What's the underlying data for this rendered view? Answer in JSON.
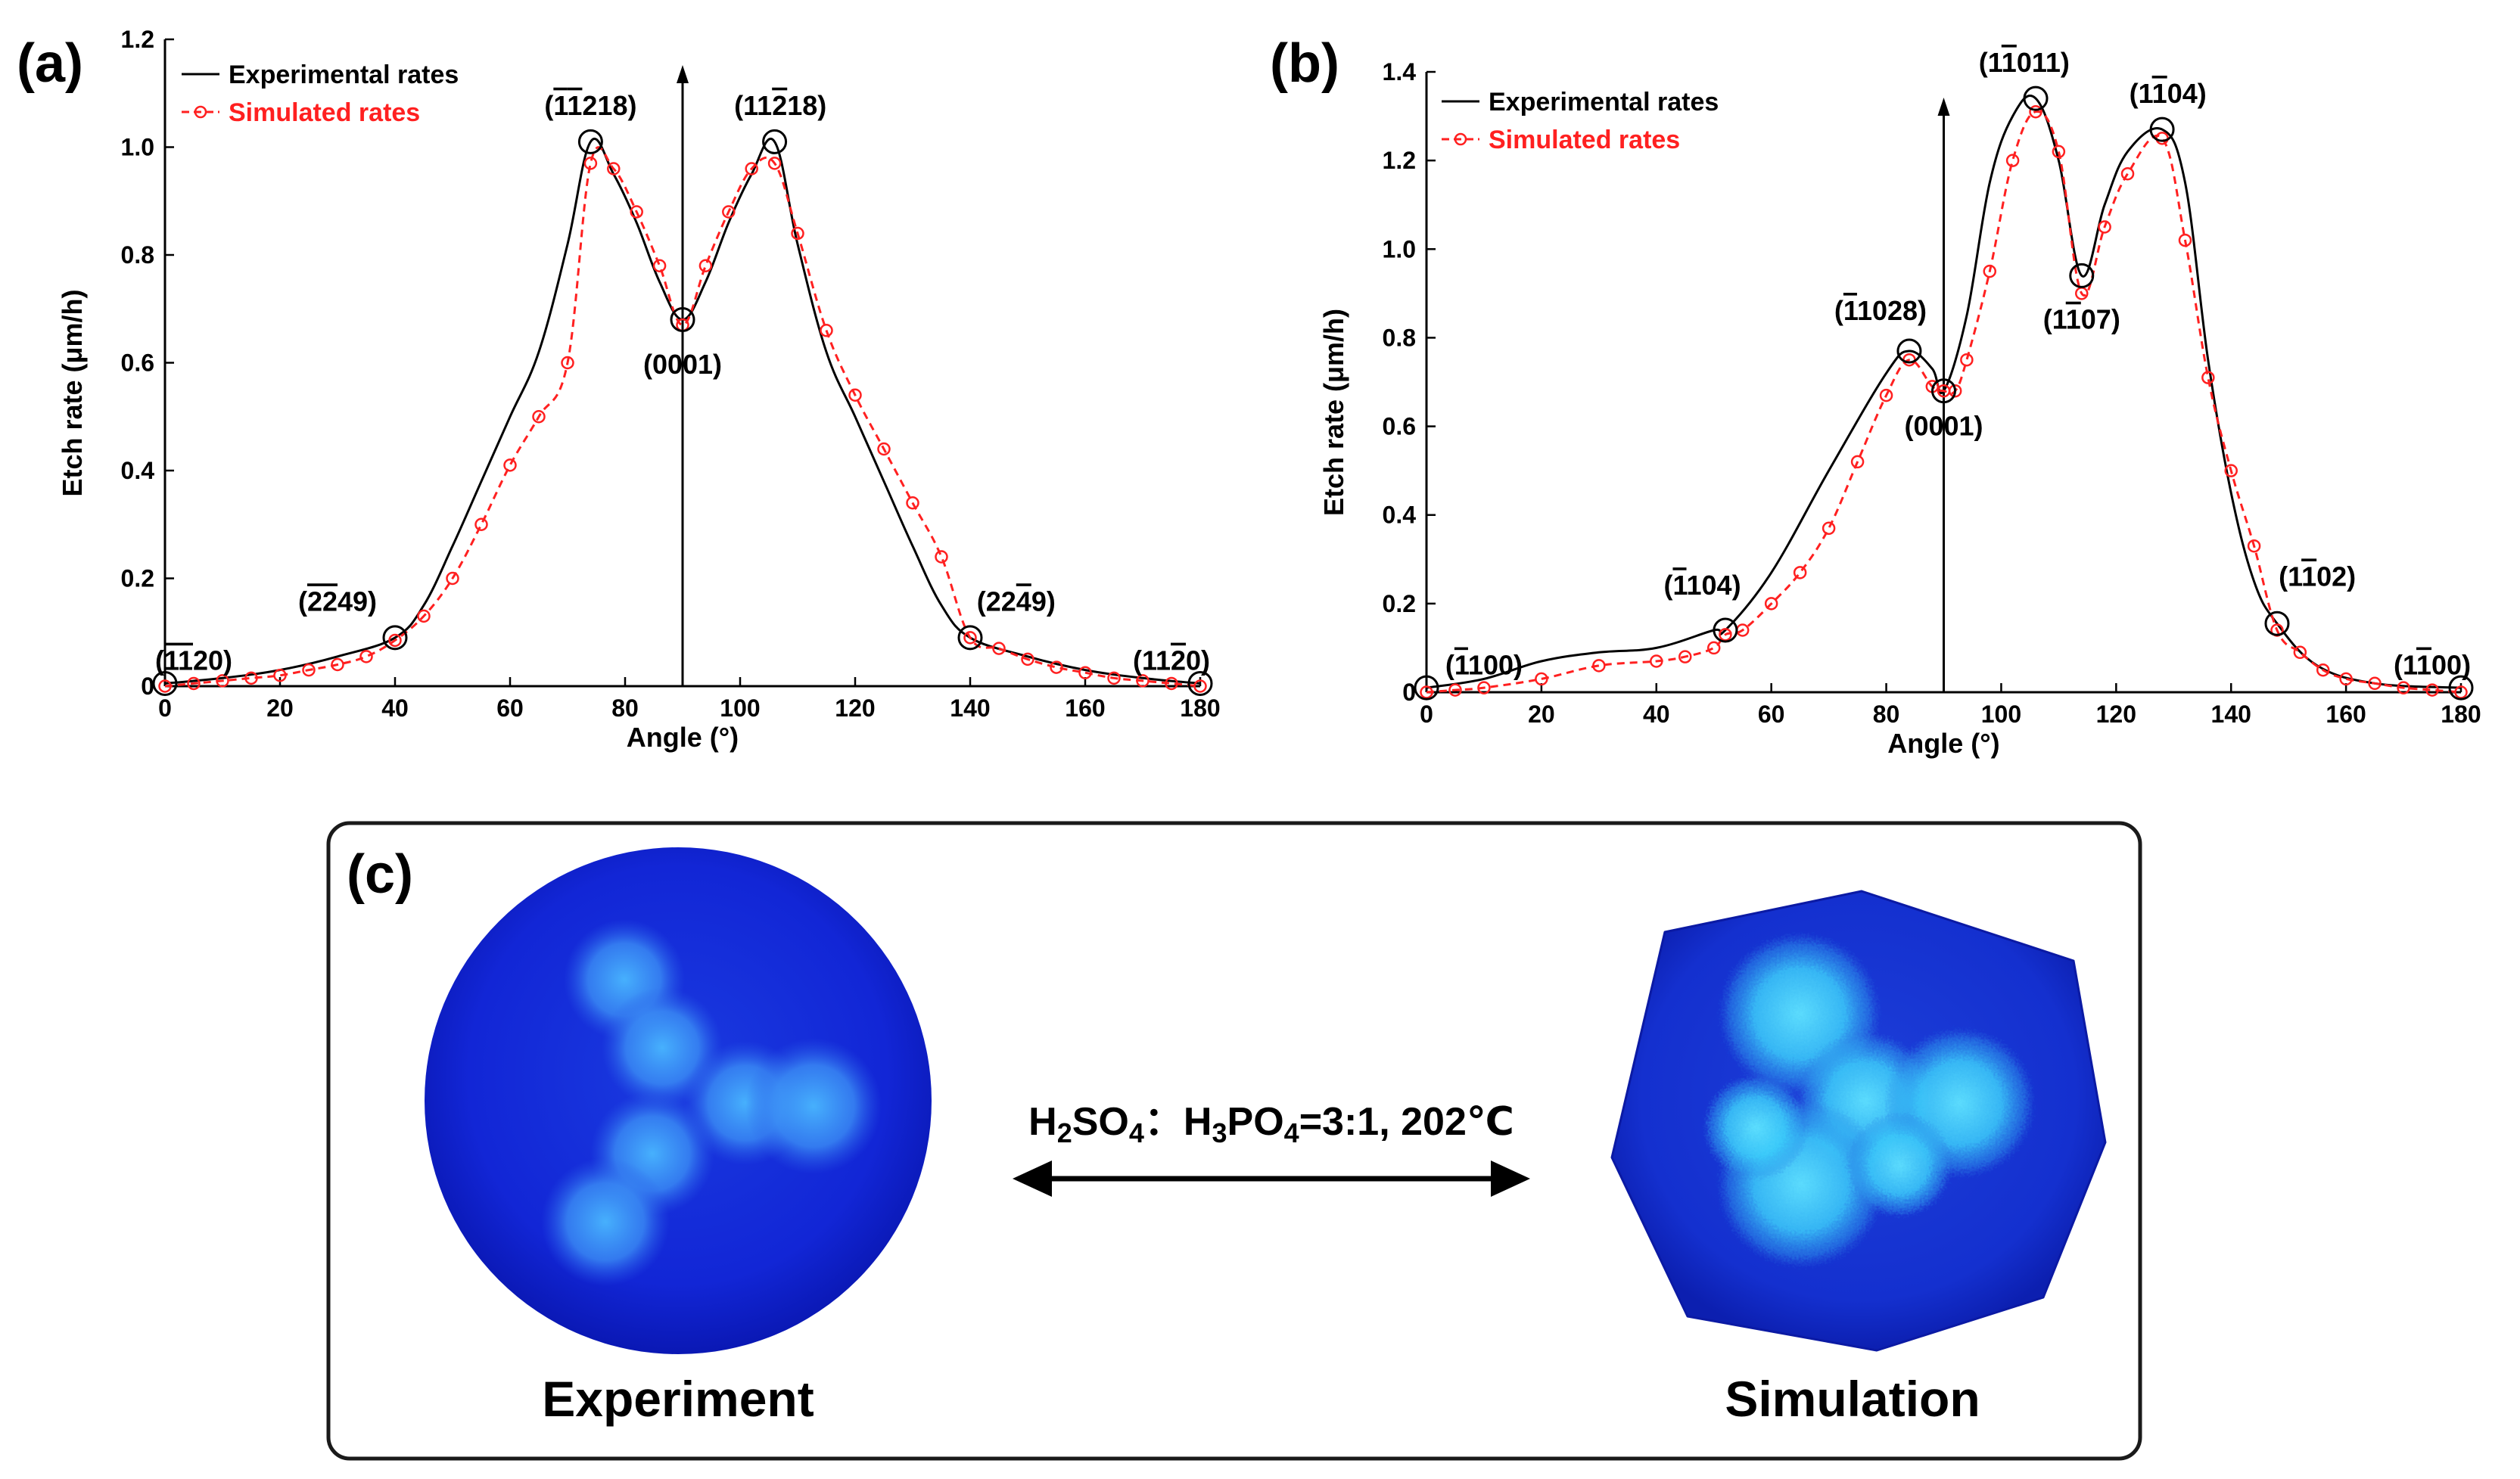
{
  "colors": {
    "experimental": "#000000",
    "simulated": "#ff2020",
    "panel_border": "#1a1a1a",
    "sphere_dark": "#0f1fcf",
    "sphere_light": "#3fa9ff",
    "sim_spot": "#35d4ff"
  },
  "chart_data": [
    {
      "panel": "(a)",
      "type": "line",
      "xlabel": "Angle (°)",
      "ylabel": "Etch rate (μm/h)",
      "xlim": [
        0,
        180
      ],
      "ylim": [
        0,
        1.2
      ],
      "xticks": [
        "0",
        "20",
        "40",
        "60",
        "80",
        "100",
        "120",
        "140",
        "160",
        "180"
      ],
      "yticks": [
        "0",
        "0.2",
        "0.4",
        "0.6",
        "0.8",
        "1.0",
        "1.2"
      ],
      "xtick_values": [
        0,
        20,
        40,
        60,
        80,
        100,
        120,
        140,
        160,
        180
      ],
      "ytick_values": [
        0,
        0.2,
        0.4,
        0.6,
        0.8,
        1.0,
        1.2
      ],
      "legend": [
        "Experimental rates",
        "Simulated rates"
      ],
      "legend_position": "top-left",
      "vertical_arrow_x": 90,
      "series": [
        {
          "name": "Experimental rates",
          "style": "solid",
          "x": [
            0,
            10,
            20,
            30,
            40,
            45,
            50,
            55,
            60,
            65,
            70,
            74,
            78,
            82,
            86,
            90,
            94,
            98,
            102,
            106,
            110,
            115,
            120,
            125,
            130,
            135,
            140,
            150,
            160,
            170,
            180
          ],
          "y": [
            0.005,
            0.015,
            0.03,
            0.055,
            0.09,
            0.15,
            0.26,
            0.38,
            0.5,
            0.62,
            0.82,
            1.01,
            0.95,
            0.86,
            0.75,
            0.68,
            0.75,
            0.86,
            0.95,
            1.01,
            0.82,
            0.62,
            0.5,
            0.38,
            0.26,
            0.15,
            0.09,
            0.055,
            0.03,
            0.015,
            0.005
          ]
        },
        {
          "name": "Simulated rates",
          "style": "dashed-circle",
          "x": [
            0,
            5,
            10,
            15,
            20,
            25,
            30,
            35,
            40,
            45,
            50,
            55,
            60,
            65,
            70,
            74,
            78,
            82,
            86,
            90,
            94,
            98,
            102,
            106,
            110,
            115,
            120,
            125,
            130,
            135,
            140,
            145,
            150,
            155,
            160,
            165,
            170,
            175,
            180
          ],
          "y": [
            0.0,
            0.005,
            0.01,
            0.015,
            0.02,
            0.03,
            0.04,
            0.055,
            0.085,
            0.13,
            0.2,
            0.3,
            0.41,
            0.5,
            0.6,
            0.97,
            0.96,
            0.88,
            0.78,
            0.67,
            0.78,
            0.88,
            0.96,
            0.97,
            0.84,
            0.66,
            0.54,
            0.44,
            0.34,
            0.24,
            0.09,
            0.07,
            0.05,
            0.035,
            0.025,
            0.015,
            0.01,
            0.005,
            0.0
          ]
        }
      ],
      "markers": [
        {
          "x": 0,
          "y": 0.005,
          "label_parts": [
            "(",
            "1",
            "1",
            "20)"
          ],
          "bars": [
            1,
            2
          ],
          "label_x": 5,
          "label_y": 0.03,
          "anchor": "middle"
        },
        {
          "x": 40,
          "y": 0.09,
          "label_parts": [
            "(",
            "2",
            "2",
            "49)"
          ],
          "bars": [
            1,
            2
          ],
          "label_x": 30,
          "label_y": 0.14,
          "anchor": "middle"
        },
        {
          "x": 74,
          "y": 1.01,
          "label_parts": [
            "(",
            "1",
            "1",
            "218)"
          ],
          "bars": [
            1,
            2
          ],
          "label_x": 74,
          "label_y": 1.06,
          "anchor": "middle"
        },
        {
          "x": 90,
          "y": 0.68,
          "label_parts": [
            "(0001)"
          ],
          "bars": [],
          "label_x": 90,
          "label_y": 0.58,
          "anchor": "middle"
        },
        {
          "x": 106,
          "y": 1.01,
          "label_parts": [
            "(11",
            "2",
            "18)"
          ],
          "bars": [
            1
          ],
          "label_x": 107,
          "label_y": 1.06,
          "anchor": "middle"
        },
        {
          "x": 140,
          "y": 0.09,
          "label_parts": [
            "(22",
            "4",
            "9)"
          ],
          "bars": [
            1
          ],
          "label_x": 148,
          "label_y": 0.14,
          "anchor": "middle"
        },
        {
          "x": 180,
          "y": 0.005,
          "label_parts": [
            "(11",
            "2",
            "0)"
          ],
          "bars": [
            1
          ],
          "label_x": 175,
          "label_y": 0.03,
          "anchor": "middle"
        }
      ]
    },
    {
      "panel": "(b)",
      "type": "line",
      "xlabel": "Angle (°)",
      "ylabel": "Etch rate (μm/h)",
      "xlim": [
        0,
        180
      ],
      "ylim": [
        0,
        1.4
      ],
      "xticks": [
        "0",
        "20",
        "40",
        "60",
        "80",
        "100",
        "120",
        "140",
        "160",
        "180"
      ],
      "yticks": [
        "0",
        "0.2",
        "0.4",
        "0.6",
        "0.8",
        "1.0",
        "1.2",
        "1.4"
      ],
      "xtick_values": [
        0,
        20,
        40,
        60,
        80,
        100,
        120,
        140,
        160,
        180
      ],
      "ytick_values": [
        0,
        0.2,
        0.4,
        0.6,
        0.8,
        1.0,
        1.2,
        1.4
      ],
      "legend": [
        "Experimental rates",
        "Simulated rates"
      ],
      "legend_position": "top-left",
      "vertical_arrow_x": 90,
      "series": [
        {
          "name": "Experimental rates",
          "style": "solid",
          "x": [
            0,
            10,
            20,
            30,
            40,
            50,
            52,
            60,
            70,
            80,
            84,
            88,
            90,
            94,
            98,
            102,
            106,
            110,
            114,
            118,
            122,
            128,
            132,
            136,
            140,
            144,
            148,
            155,
            165,
            180
          ],
          "y": [
            0.01,
            0.03,
            0.07,
            0.09,
            0.1,
            0.14,
            0.14,
            0.27,
            0.5,
            0.72,
            0.77,
            0.73,
            0.68,
            0.85,
            1.15,
            1.3,
            1.34,
            1.2,
            0.94,
            1.1,
            1.22,
            1.27,
            1.15,
            0.75,
            0.45,
            0.25,
            0.155,
            0.06,
            0.02,
            0.01
          ]
        },
        {
          "name": "Simulated rates",
          "style": "dashed-circle",
          "x": [
            0,
            5,
            10,
            20,
            30,
            40,
            45,
            50,
            52,
            55,
            60,
            65,
            70,
            75,
            80,
            84,
            88,
            90,
            92,
            94,
            98,
            102,
            106,
            110,
            114,
            118,
            122,
            128,
            132,
            136,
            140,
            144,
            148,
            152,
            156,
            160,
            165,
            170,
            175,
            180
          ],
          "y": [
            0.0,
            0.005,
            0.01,
            0.03,
            0.06,
            0.07,
            0.08,
            0.1,
            0.13,
            0.14,
            0.2,
            0.27,
            0.37,
            0.52,
            0.67,
            0.75,
            0.69,
            0.68,
            0.68,
            0.75,
            0.95,
            1.2,
            1.31,
            1.22,
            0.9,
            1.05,
            1.17,
            1.25,
            1.02,
            0.71,
            0.5,
            0.33,
            0.14,
            0.09,
            0.05,
            0.03,
            0.02,
            0.01,
            0.005,
            0.0
          ]
        }
      ],
      "markers": [
        {
          "x": 0,
          "y": 0.01,
          "label_parts": [
            "(",
            "1",
            "100)"
          ],
          "bars": [
            1
          ],
          "label_x": 10,
          "label_y": 0.04,
          "anchor": "middle"
        },
        {
          "x": 52,
          "y": 0.14,
          "label_parts": [
            "(",
            "1",
            "104)"
          ],
          "bars": [
            1
          ],
          "label_x": 48,
          "label_y": 0.22,
          "anchor": "middle"
        },
        {
          "x": 84,
          "y": 0.77,
          "label_parts": [
            "(",
            "1",
            "1028)"
          ],
          "bars": [
            1
          ],
          "label_x": 79,
          "label_y": 0.84,
          "anchor": "middle"
        },
        {
          "x": 90,
          "y": 0.68,
          "label_parts": [
            "(0001)"
          ],
          "bars": [],
          "label_x": 90,
          "label_y": 0.58,
          "anchor": "middle"
        },
        {
          "x": 106,
          "y": 1.34,
          "label_parts": [
            "(1",
            "1",
            "011)"
          ],
          "bars": [
            1
          ],
          "label_x": 104,
          "label_y": 1.4,
          "anchor": "middle"
        },
        {
          "x": 114,
          "y": 0.94,
          "label_parts": [
            "(1",
            "1",
            "07)"
          ],
          "bars": [
            1
          ],
          "label_x": 114,
          "label_y": 0.82,
          "anchor": "middle"
        },
        {
          "x": 128,
          "y": 1.27,
          "label_parts": [
            "(1",
            "1",
            "04)"
          ],
          "bars": [
            1
          ],
          "label_x": 129,
          "label_y": 1.33,
          "anchor": "middle"
        },
        {
          "x": 148,
          "y": 0.155,
          "label_parts": [
            "(1",
            "1",
            "02)"
          ],
          "bars": [
            1
          ],
          "label_x": 155,
          "label_y": 0.24,
          "anchor": "middle"
        },
        {
          "x": 180,
          "y": 0.01,
          "label_parts": [
            "(1",
            "1",
            "00)"
          ],
          "bars": [
            1
          ],
          "label_x": 175,
          "label_y": 0.04,
          "anchor": "middle"
        }
      ]
    }
  ],
  "panel_c": {
    "label": "(c)",
    "left_caption": "Experiment",
    "right_caption": "Simulation",
    "formula_parts": [
      "H",
      "2",
      "SO",
      "4",
      "：H",
      "3",
      "PO",
      "4",
      "=3:1, 202℃"
    ]
  }
}
